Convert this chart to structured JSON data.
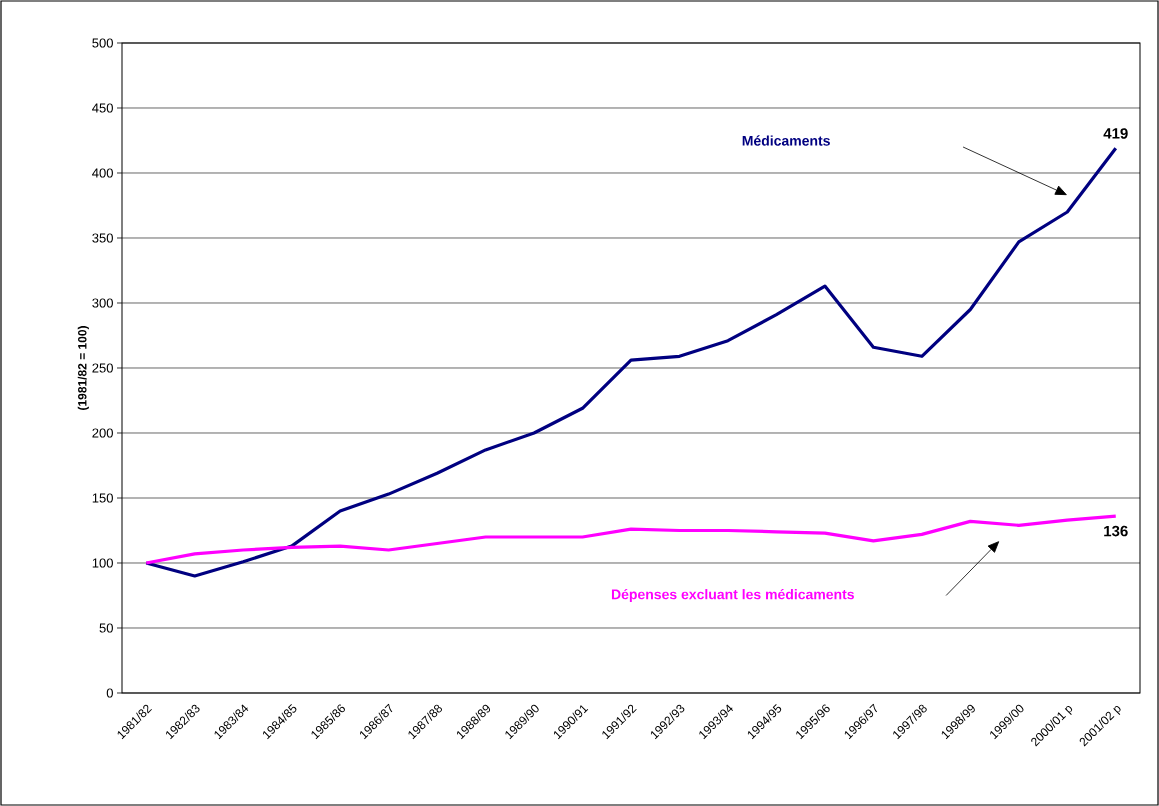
{
  "chart_data": {
    "type": "line",
    "ylabel": "(1981/82 = 100)",
    "categories": [
      "1981/82",
      "1982/83",
      "1983/84",
      "1984/85",
      "1985/86",
      "1986/87",
      "1987/88",
      "1988/89",
      "1989/90",
      "1990/91",
      "1991/92",
      "1992/93",
      "1993/94",
      "1994/95",
      "1995/96",
      "1996/97",
      "1997/98",
      "1998/99",
      "1999/00",
      "2000/01 p",
      "2001/02 p"
    ],
    "series": [
      {
        "name": "Médicaments",
        "color": "#000080",
        "values": [
          100,
          90,
          101,
          113,
          140,
          153,
          169,
          187,
          200,
          219,
          256,
          259,
          271,
          291,
          313,
          266,
          259,
          295,
          347,
          370,
          419
        ],
        "value_labels": [
          null,
          null,
          null,
          null,
          null,
          null,
          null,
          null,
          null,
          null,
          null,
          null,
          null,
          null,
          null,
          null,
          null,
          null,
          null,
          null,
          "419"
        ]
      },
      {
        "name": "Dépenses excluant les médicaments",
        "color": "#ff00ff",
        "values": [
          100,
          107,
          110,
          112,
          113,
          110,
          115,
          120,
          120,
          120,
          126,
          125,
          125,
          124,
          123,
          117,
          122,
          132,
          129,
          133,
          136
        ],
        "value_labels": [
          null,
          null,
          null,
          null,
          null,
          null,
          null,
          null,
          null,
          null,
          null,
          null,
          null,
          null,
          null,
          null,
          null,
          null,
          null,
          null,
          "136"
        ]
      }
    ],
    "ylim": [
      0,
      500
    ],
    "yticks": [
      0,
      50,
      100,
      150,
      200,
      250,
      300,
      350,
      400,
      450,
      500
    ],
    "grid": "y"
  }
}
